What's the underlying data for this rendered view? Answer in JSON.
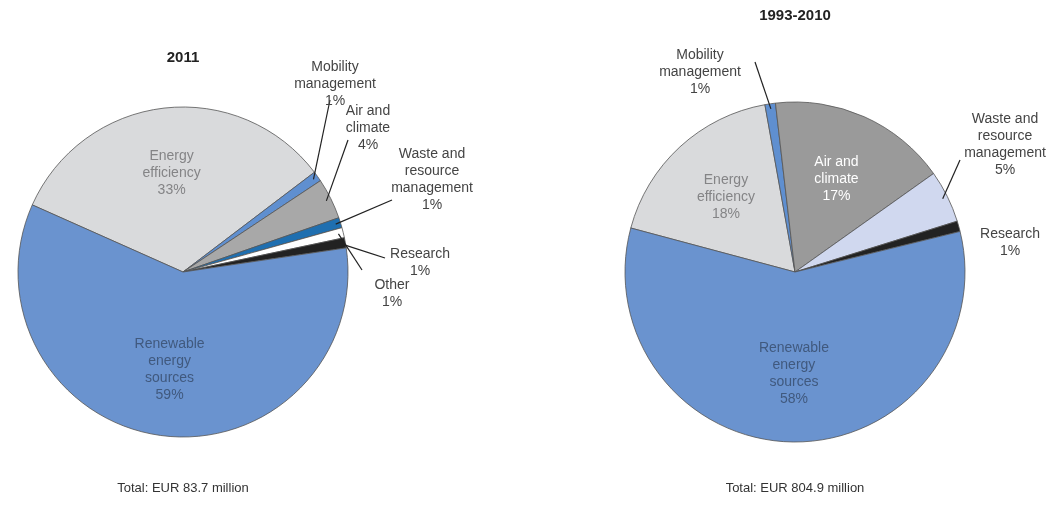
{
  "chart_data": [
    {
      "type": "pie",
      "title": "2011",
      "categories": [
        "Energy efficiency",
        "Mobility management",
        "Air and climate",
        "Waste and resource management",
        "Other",
        "Research",
        "Renewable energy sources"
      ],
      "values": [
        33,
        1,
        4,
        1,
        1,
        1,
        59
      ],
      "value_labels": [
        "33%",
        "1%",
        "4%",
        "1%",
        "1%",
        "1%",
        "59%"
      ],
      "colors": [
        "#d9dadc",
        "#5f8fd0",
        "#a8a8a8",
        "#1f6fb0",
        "#ffffff",
        "#222222",
        "#6a93cf"
      ],
      "annotations": [
        "Total: EUR 83.7 million"
      ]
    },
    {
      "type": "pie",
      "title": "1993-2010",
      "categories": [
        "Energy efficiency",
        "Mobility management",
        "Air and climate",
        "Waste and resource management",
        "Research",
        "Renewable energy sources"
      ],
      "values": [
        18,
        1,
        17,
        5,
        1,
        58
      ],
      "value_labels": [
        "18%",
        "1%",
        "17%",
        "5%",
        "1%",
        "58%"
      ],
      "colors": [
        "#d9dadc",
        "#5f8fd0",
        "#9a9a9a",
        "#d0d8ef",
        "#222222",
        "#6a93cf"
      ],
      "annotations": [
        "Total: EUR 804.9 million"
      ]
    }
  ]
}
